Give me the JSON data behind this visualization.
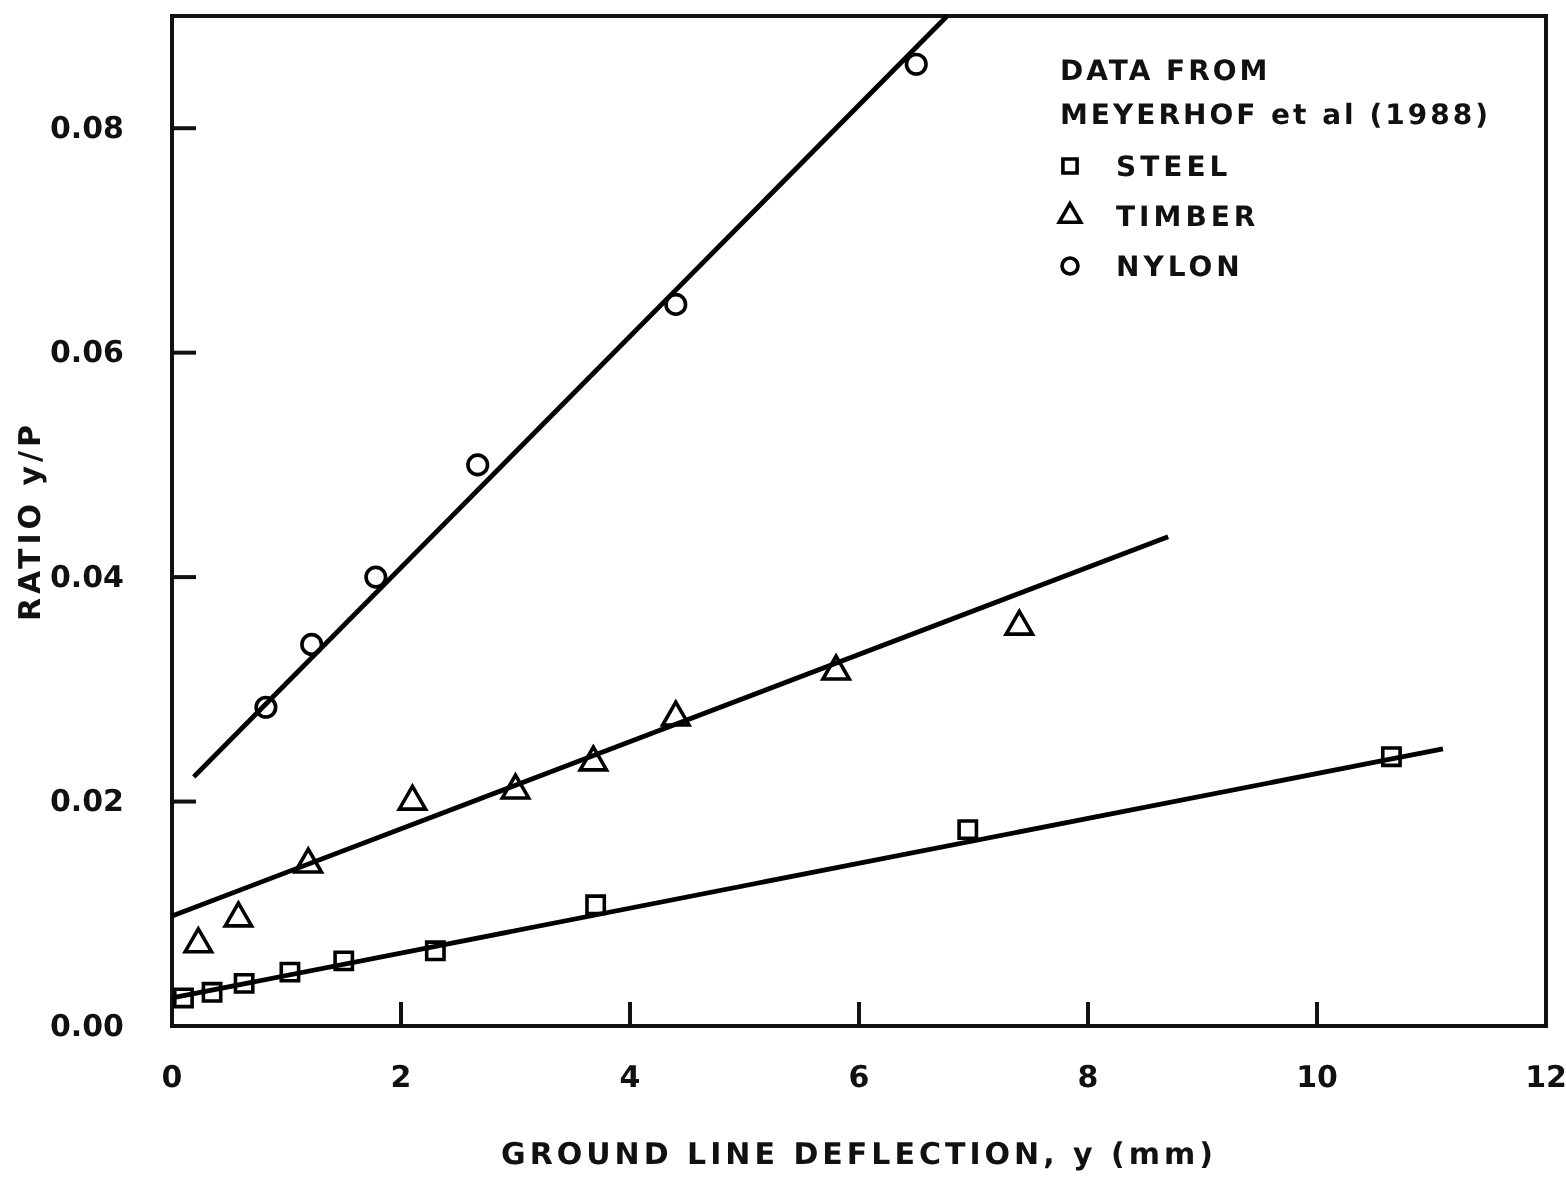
{
  "chart_data": {
    "type": "scatter",
    "xlabel": "GROUND LINE DEFLECTION, y (mm)",
    "ylabel": "RATIO y/P",
    "legend_title": "DATA FROM MEYERHOF et al (1988)",
    "legend": "top right",
    "xlim": [
      0,
      12
    ],
    "xticks": [
      0,
      2,
      4,
      6,
      8,
      10,
      12
    ],
    "ylim": [
      0,
      0.09
    ],
    "yticks": [
      {
        "value": 0,
        "label": "0.00"
      },
      {
        "value": 0.02,
        "label": "0.02"
      },
      {
        "value": 0.04,
        "label": "0.04"
      },
      {
        "value": 0.06,
        "label": "0.06"
      },
      {
        "value": 0.08,
        "label": "0.08"
      }
    ],
    "grid": false,
    "series": [
      {
        "name": "STEEL",
        "marker": "square",
        "color": "#000000",
        "x": [
          0.1,
          0.35,
          0.63,
          1.03,
          1.5,
          2.3,
          3.7,
          6.95,
          10.65
        ],
        "values": [
          0.0025,
          0.003,
          0.0038,
          0.0048,
          0.0058,
          0.0067,
          0.0108,
          0.0175,
          0.024
        ]
      },
      {
        "name": "TIMBER",
        "marker": "triangle",
        "color": "#000000",
        "x": [
          0.23,
          0.58,
          1.19,
          2.1,
          3.0,
          3.68,
          4.4,
          5.8,
          7.4
        ],
        "values": [
          0.0073,
          0.0096,
          0.0144,
          0.02,
          0.021,
          0.0235,
          0.0275,
          0.0316,
          0.0356
        ]
      },
      {
        "name": "NYLON",
        "marker": "circle",
        "color": "#000000",
        "x": [
          0.82,
          1.22,
          1.78,
          2.67,
          4.4,
          6.5
        ],
        "values": [
          0.0284,
          0.034,
          0.04,
          0.05,
          0.0643,
          0.0857
        ]
      },
      {
        "type": "line",
        "color": "#000000",
        "x": [
          0,
          11.1
        ],
        "values": [
          0.0025,
          0.0247
        ]
      },
      {
        "type": "line",
        "color": "#000000",
        "x": [
          0,
          8.7
        ],
        "values": [
          0.0098,
          0.0436
        ]
      },
      {
        "type": "line",
        "color": "#000000",
        "x": [
          0.19,
          6.77
        ],
        "values": [
          0.0222,
          0.09
        ]
      }
    ]
  }
}
